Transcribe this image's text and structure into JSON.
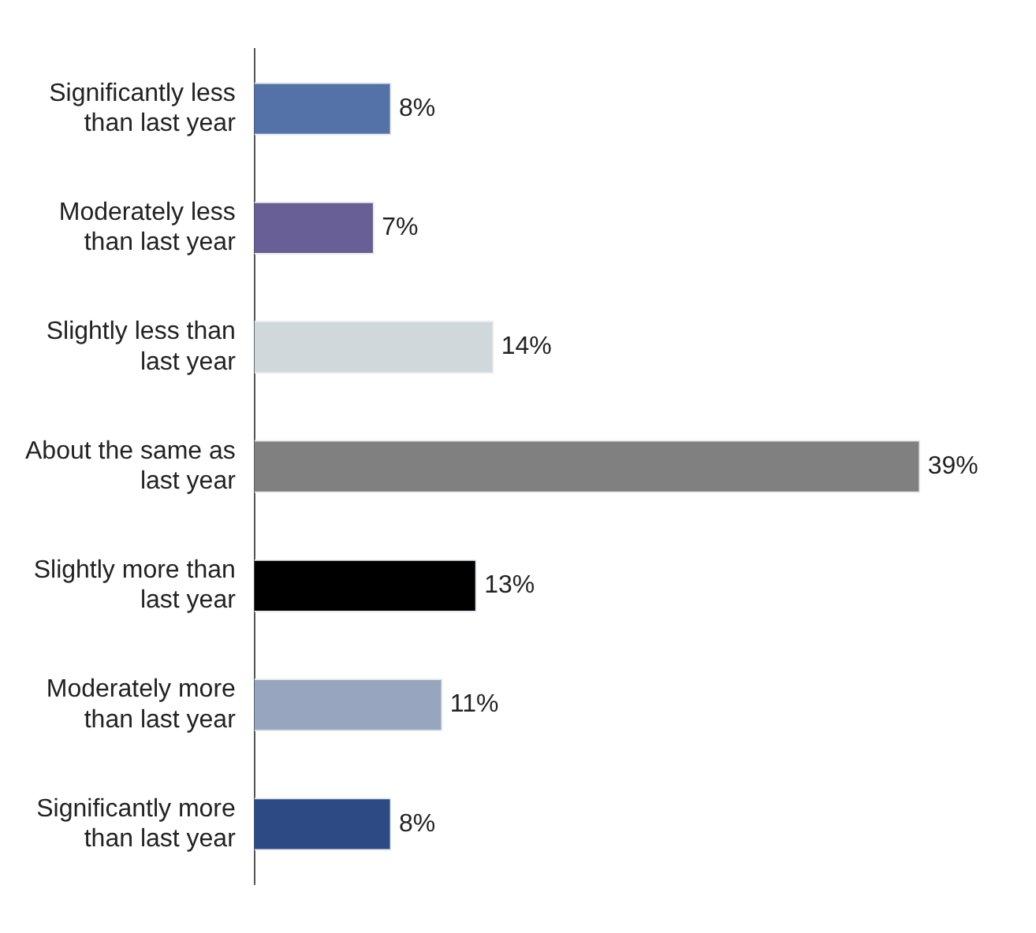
{
  "chart_data": {
    "type": "bar",
    "orientation": "horizontal",
    "categories": [
      "Significantly less than last year",
      "Moderately less than last year",
      "Slightly less than last year",
      "About the same as last year",
      "Slightly more than last year",
      "Moderately more than last year",
      "Significantly more than last year"
    ],
    "values": [
      8,
      7,
      14,
      39,
      13,
      11,
      8
    ],
    "colors": [
      "#5572a8",
      "#675f96",
      "#d0d8dc",
      "#808080",
      "#000000",
      "#97a6be",
      "#2e4a85"
    ],
    "value_labels": [
      "8%",
      "7%",
      "14%",
      "39%",
      "13%",
      "11%",
      "8%"
    ],
    "legend": false
  }
}
